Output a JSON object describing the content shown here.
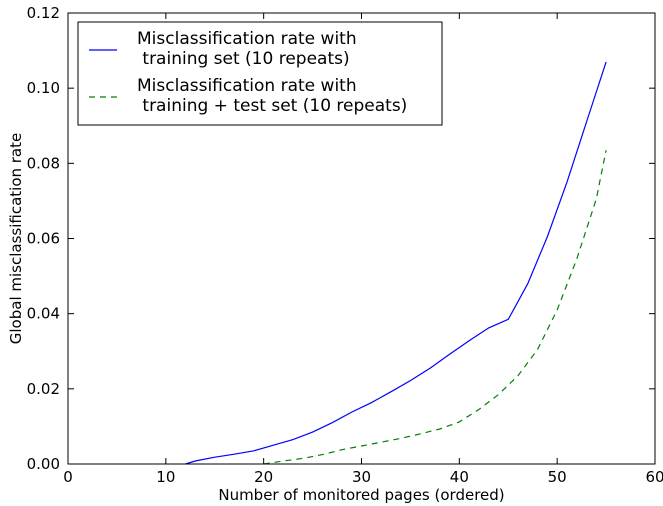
{
  "chart_data": {
    "type": "line",
    "xlabel": "Number of monitored pages (ordered)",
    "ylabel": "Global misclassification rate",
    "xlim": [
      0,
      60
    ],
    "ylim": [
      0,
      0.12
    ],
    "x_ticks": [
      0,
      10,
      20,
      30,
      40,
      50,
      60
    ],
    "x_tick_labels": [
      "0",
      "10",
      "20",
      "30",
      "40",
      "50",
      "60"
    ],
    "y_ticks": [
      0,
      0.02,
      0.04,
      0.06,
      0.08,
      0.1,
      0.12
    ],
    "y_tick_labels": [
      "0.00",
      "0.02",
      "0.04",
      "0.06",
      "0.08",
      "0.10",
      "0.12"
    ],
    "grid": false,
    "legend_position": "top-left",
    "series": [
      {
        "name": "Misclassification rate with\n training set (10 repeats)",
        "color": "#0000ff",
        "style": "solid",
        "x": [
          12,
          13,
          15,
          17,
          19,
          21,
          23,
          25,
          27,
          29,
          31,
          33,
          35,
          37,
          39,
          41,
          43,
          45,
          47,
          49,
          51,
          53,
          55
        ],
        "y": [
          0.0,
          0.0008,
          0.0018,
          0.0026,
          0.0035,
          0.005,
          0.0065,
          0.0085,
          0.011,
          0.0138,
          0.0163,
          0.0192,
          0.0222,
          0.0255,
          0.0292,
          0.0328,
          0.0362,
          0.0385,
          0.048,
          0.0605,
          0.075,
          0.091,
          0.107
        ]
      },
      {
        "name": "Misclassification rate with\n training + test set (10 repeats)",
        "color": "#008000",
        "style": "dashed",
        "x": [
          20,
          22,
          24,
          26,
          28,
          30,
          32,
          34,
          36,
          38,
          40,
          42,
          44,
          46,
          48,
          50,
          52,
          54,
          55
        ],
        "y": [
          0.0,
          0.0008,
          0.0015,
          0.0025,
          0.0038,
          0.0048,
          0.0058,
          0.0068,
          0.008,
          0.0093,
          0.0112,
          0.0145,
          0.0185,
          0.0235,
          0.0305,
          0.041,
          0.0545,
          0.0705,
          0.0835
        ]
      }
    ]
  }
}
